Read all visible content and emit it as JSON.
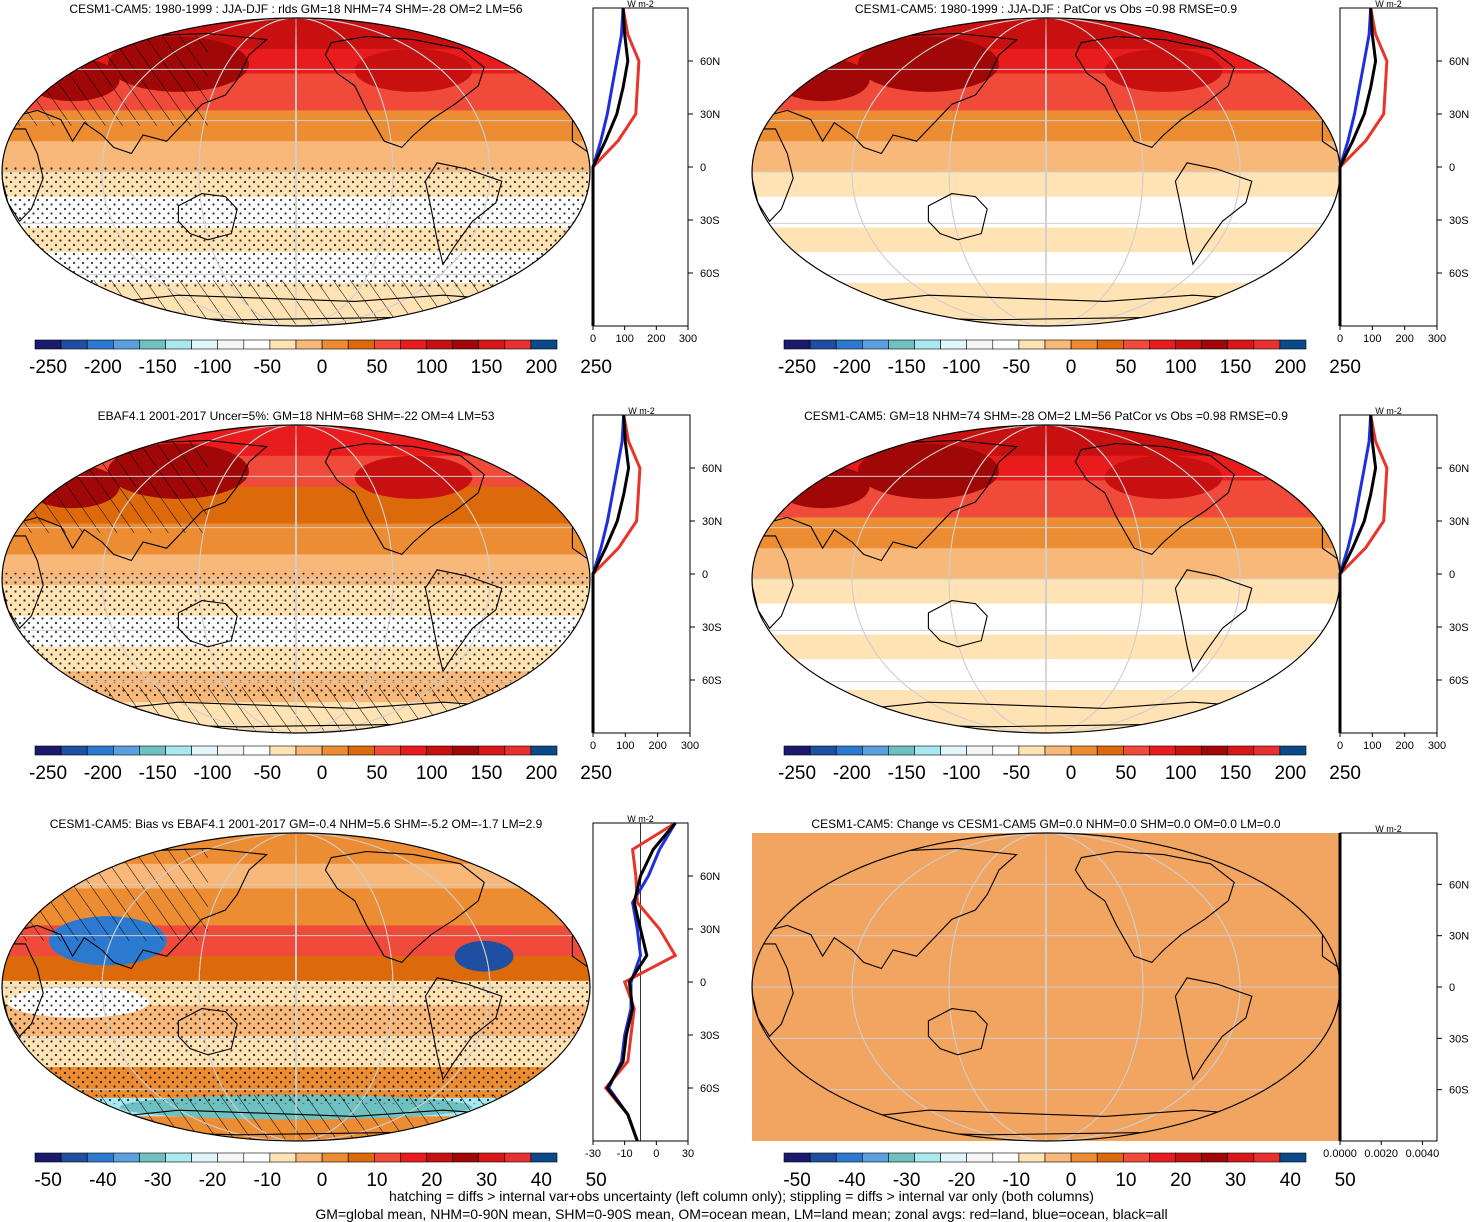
{
  "colors": {
    "levels": [
      "#1a1a6e",
      "#1f4fa0",
      "#2b7ad0",
      "#5aa0e0",
      "#6fc0c0",
      "#a8e8f0",
      "#e0f6fa",
      "#f5f5f5",
      "#ffffff",
      "#ffe3b5",
      "#f7b87a",
      "#ec8d33",
      "#dd6a0a",
      "#f04a3a",
      "#e81c1c",
      "#c81010",
      "#a00808",
      "#d81818",
      "#e83030",
      "#0a4a8a"
    ],
    "land_line": "#e8342a",
    "ocean_line": "#1f2fe0",
    "all_line": "#000000",
    "uniform_field": "#f2a560"
  },
  "panels": [
    {
      "id": "p1",
      "title": "CESM1-CAM5: 1980-1999 : JJA-DJF : rlds GM=18 NHM=74 SHM=-28 OM=2 LM=56",
      "style": "model",
      "hatch": true,
      "stipple": true,
      "cb_labels": [
        "-250",
        "-200",
        "-150",
        "-100",
        "-50",
        "0",
        "50",
        "100",
        "150",
        "200",
        "250"
      ],
      "zx_labels": [
        "0",
        "100",
        "200",
        "300"
      ],
      "unit": "W m-2",
      "lat_labels": [
        "60N",
        "30N",
        "0",
        "30S",
        "60S"
      ]
    },
    {
      "id": "p2",
      "title": "CESM1-CAM5: 1980-1999 : JJA-DJF : PatCor vs Obs =0.98 RMSE=0.9",
      "style": "model",
      "hatch": false,
      "stipple": false,
      "cb_labels": [
        "-250",
        "-200",
        "-150",
        "-100",
        "-50",
        "0",
        "50",
        "100",
        "150",
        "200",
        "250"
      ],
      "zx_labels": [
        "0",
        "100",
        "200",
        "300"
      ],
      "unit": "W m-2",
      "lat_labels": [
        "60N",
        "30N",
        "0",
        "30S",
        "60S"
      ]
    },
    {
      "id": "p3",
      "title": "EBAF4.1 2001-2017 Uncer=5%: GM=18 NHM=68 SHM=-22 OM=4 LM=53",
      "style": "obs",
      "hatch": true,
      "stipple": true,
      "cb_labels": [
        "-250",
        "-200",
        "-150",
        "-100",
        "-50",
        "0",
        "50",
        "100",
        "150",
        "200",
        "250"
      ],
      "zx_labels": [
        "0",
        "100",
        "200",
        "300"
      ],
      "unit": "W m-2",
      "lat_labels": [
        "60N",
        "30N",
        "0",
        "30S",
        "60S"
      ]
    },
    {
      "id": "p4",
      "title": "CESM1-CAM5: GM=18 NHM=74 SHM=-28 OM=2 LM=56 PatCor vs Obs =0.98 RMSE=0.9",
      "style": "model",
      "hatch": false,
      "stipple": false,
      "cb_labels": [
        "-250",
        "-200",
        "-150",
        "-100",
        "-50",
        "0",
        "50",
        "100",
        "150",
        "200",
        "250"
      ],
      "zx_labels": [
        "0",
        "100",
        "200",
        "300"
      ],
      "unit": "W m-2",
      "lat_labels": [
        "60N",
        "30N",
        "0",
        "30S",
        "60S"
      ]
    },
    {
      "id": "p5",
      "title": "CESM1-CAM5: Bias vs EBAF4.1 2001-2017 GM=-0.4 NHM=5.6 SHM=-5.2 OM=-1.7 LM=2.9",
      "style": "bias",
      "hatch": true,
      "stipple": true,
      "cb_labels": [
        "-50",
        "-40",
        "-30",
        "-20",
        "-10",
        "0",
        "10",
        "20",
        "30",
        "40",
        "50"
      ],
      "zx_labels": [
        "-30",
        "-10",
        "0",
        "30"
      ],
      "unit": "W m-2",
      "lat_labels": [
        "60N",
        "30N",
        "0",
        "30S",
        "60S"
      ]
    },
    {
      "id": "p6",
      "title": "CESM1-CAM5: Change vs CESM1-CAM5 GM=0.0 NHM=0.0 SHM=0.0 OM=0.0 LM=0.0",
      "style": "uniform",
      "hatch": false,
      "stipple": false,
      "cb_labels": [
        "-50",
        "-40",
        "-30",
        "-20",
        "-10",
        "0",
        "10",
        "20",
        "30",
        "40",
        "50"
      ],
      "zx_labels": [
        "0.0000",
        "0.0020",
        "0.0040"
      ],
      "unit": "W m-2",
      "lat_labels": [
        "60N",
        "30N",
        "0",
        "30S",
        "60S"
      ]
    }
  ],
  "chart_data": {
    "type": "heatmap",
    "variable": "rlds",
    "season": "JJA-DJF",
    "zonal_profile_lats": [
      -90,
      -75,
      -60,
      -45,
      -30,
      -15,
      0,
      15,
      30,
      45,
      60,
      75,
      90
    ],
    "zonal_profiles": {
      "mean_field": {
        "xlim": [
          0,
          300
        ],
        "land": [
          0,
          0,
          0,
          0,
          0,
          0,
          0,
          80,
          135,
          140,
          145,
          110,
          95
        ],
        "ocean": [
          0,
          0,
          0,
          0,
          0,
          0,
          0,
          25,
          45,
          60,
          75,
          90,
          95
        ],
        "all": [
          0,
          0,
          0,
          0,
          0,
          0,
          0,
          40,
          75,
          95,
          110,
          100,
          95
        ]
      },
      "bias": {
        "xlim": [
          -30,
          30
        ],
        "land": [
          -2,
          -8,
          -22,
          -8,
          -6,
          -4,
          -10,
          22,
          12,
          -2,
          -3,
          -5,
          22
        ],
        "ocean": [
          -2,
          -8,
          -20,
          -12,
          -10,
          -6,
          -6,
          0,
          -2,
          -5,
          5,
          12,
          22
        ],
        "all": [
          -2,
          -8,
          -21,
          -11,
          -9,
          -5,
          -7,
          4,
          0,
          -4,
          0,
          8,
          22
        ]
      },
      "change": {
        "xlim": [
          0,
          0.005
        ],
        "land": [
          0,
          0,
          0,
          0,
          0,
          0,
          0,
          0,
          0,
          0,
          0,
          0,
          0
        ],
        "ocean": [
          0,
          0,
          0,
          0,
          0,
          0,
          0,
          0,
          0,
          0,
          0,
          0,
          0
        ],
        "all": [
          0,
          0,
          0,
          0,
          0,
          0,
          0,
          0,
          0,
          0,
          0,
          0,
          0
        ]
      }
    }
  },
  "footer": {
    "line1": "hatching = diffs > internal var+obs uncertainty (left column only); stippling = diffs > internal var only (both columns)",
    "line2": "GM=global mean, NHM=0-90N mean, SHM=0-90S mean, OM=ocean mean, LM=land mean; zonal avgs: red=land, blue=ocean, black=all"
  }
}
